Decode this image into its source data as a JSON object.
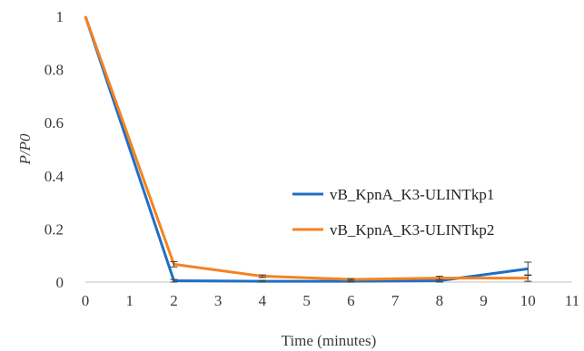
{
  "chart_data": {
    "type": "line",
    "title": "",
    "xlabel": "Time (minutes)",
    "ylabel": "P/P0",
    "xlim": [
      0,
      11
    ],
    "ylim": [
      0,
      1
    ],
    "x_ticks": [
      "0",
      "1",
      "2",
      "3",
      "4",
      "5",
      "6",
      "7",
      "8",
      "9",
      "10",
      "11"
    ],
    "y_ticks": [
      "0",
      "0.2",
      "0.4",
      "0.6",
      "0.8",
      "1"
    ],
    "grid": false,
    "legend_position": "right",
    "series": [
      {
        "name": "vB_KpnA_K3-ULINTkp1",
        "color": "#1F6FC6",
        "x": [
          0,
          2,
          4,
          6,
          8,
          10
        ],
        "y": [
          1.0,
          0.005,
          0.003,
          0.003,
          0.005,
          0.05
        ],
        "err": [
          0.0,
          0.005,
          0.003,
          0.003,
          0.005,
          0.025
        ]
      },
      {
        "name": "vB_KpnA_K3-ULINTkp2",
        "color": "#F58220",
        "x": [
          0,
          2,
          4,
          6,
          8,
          10
        ],
        "y": [
          1.0,
          0.067,
          0.022,
          0.01,
          0.015,
          0.015
        ],
        "err": [
          0.0,
          0.01,
          0.005,
          0.003,
          0.007,
          0.012
        ]
      }
    ]
  }
}
